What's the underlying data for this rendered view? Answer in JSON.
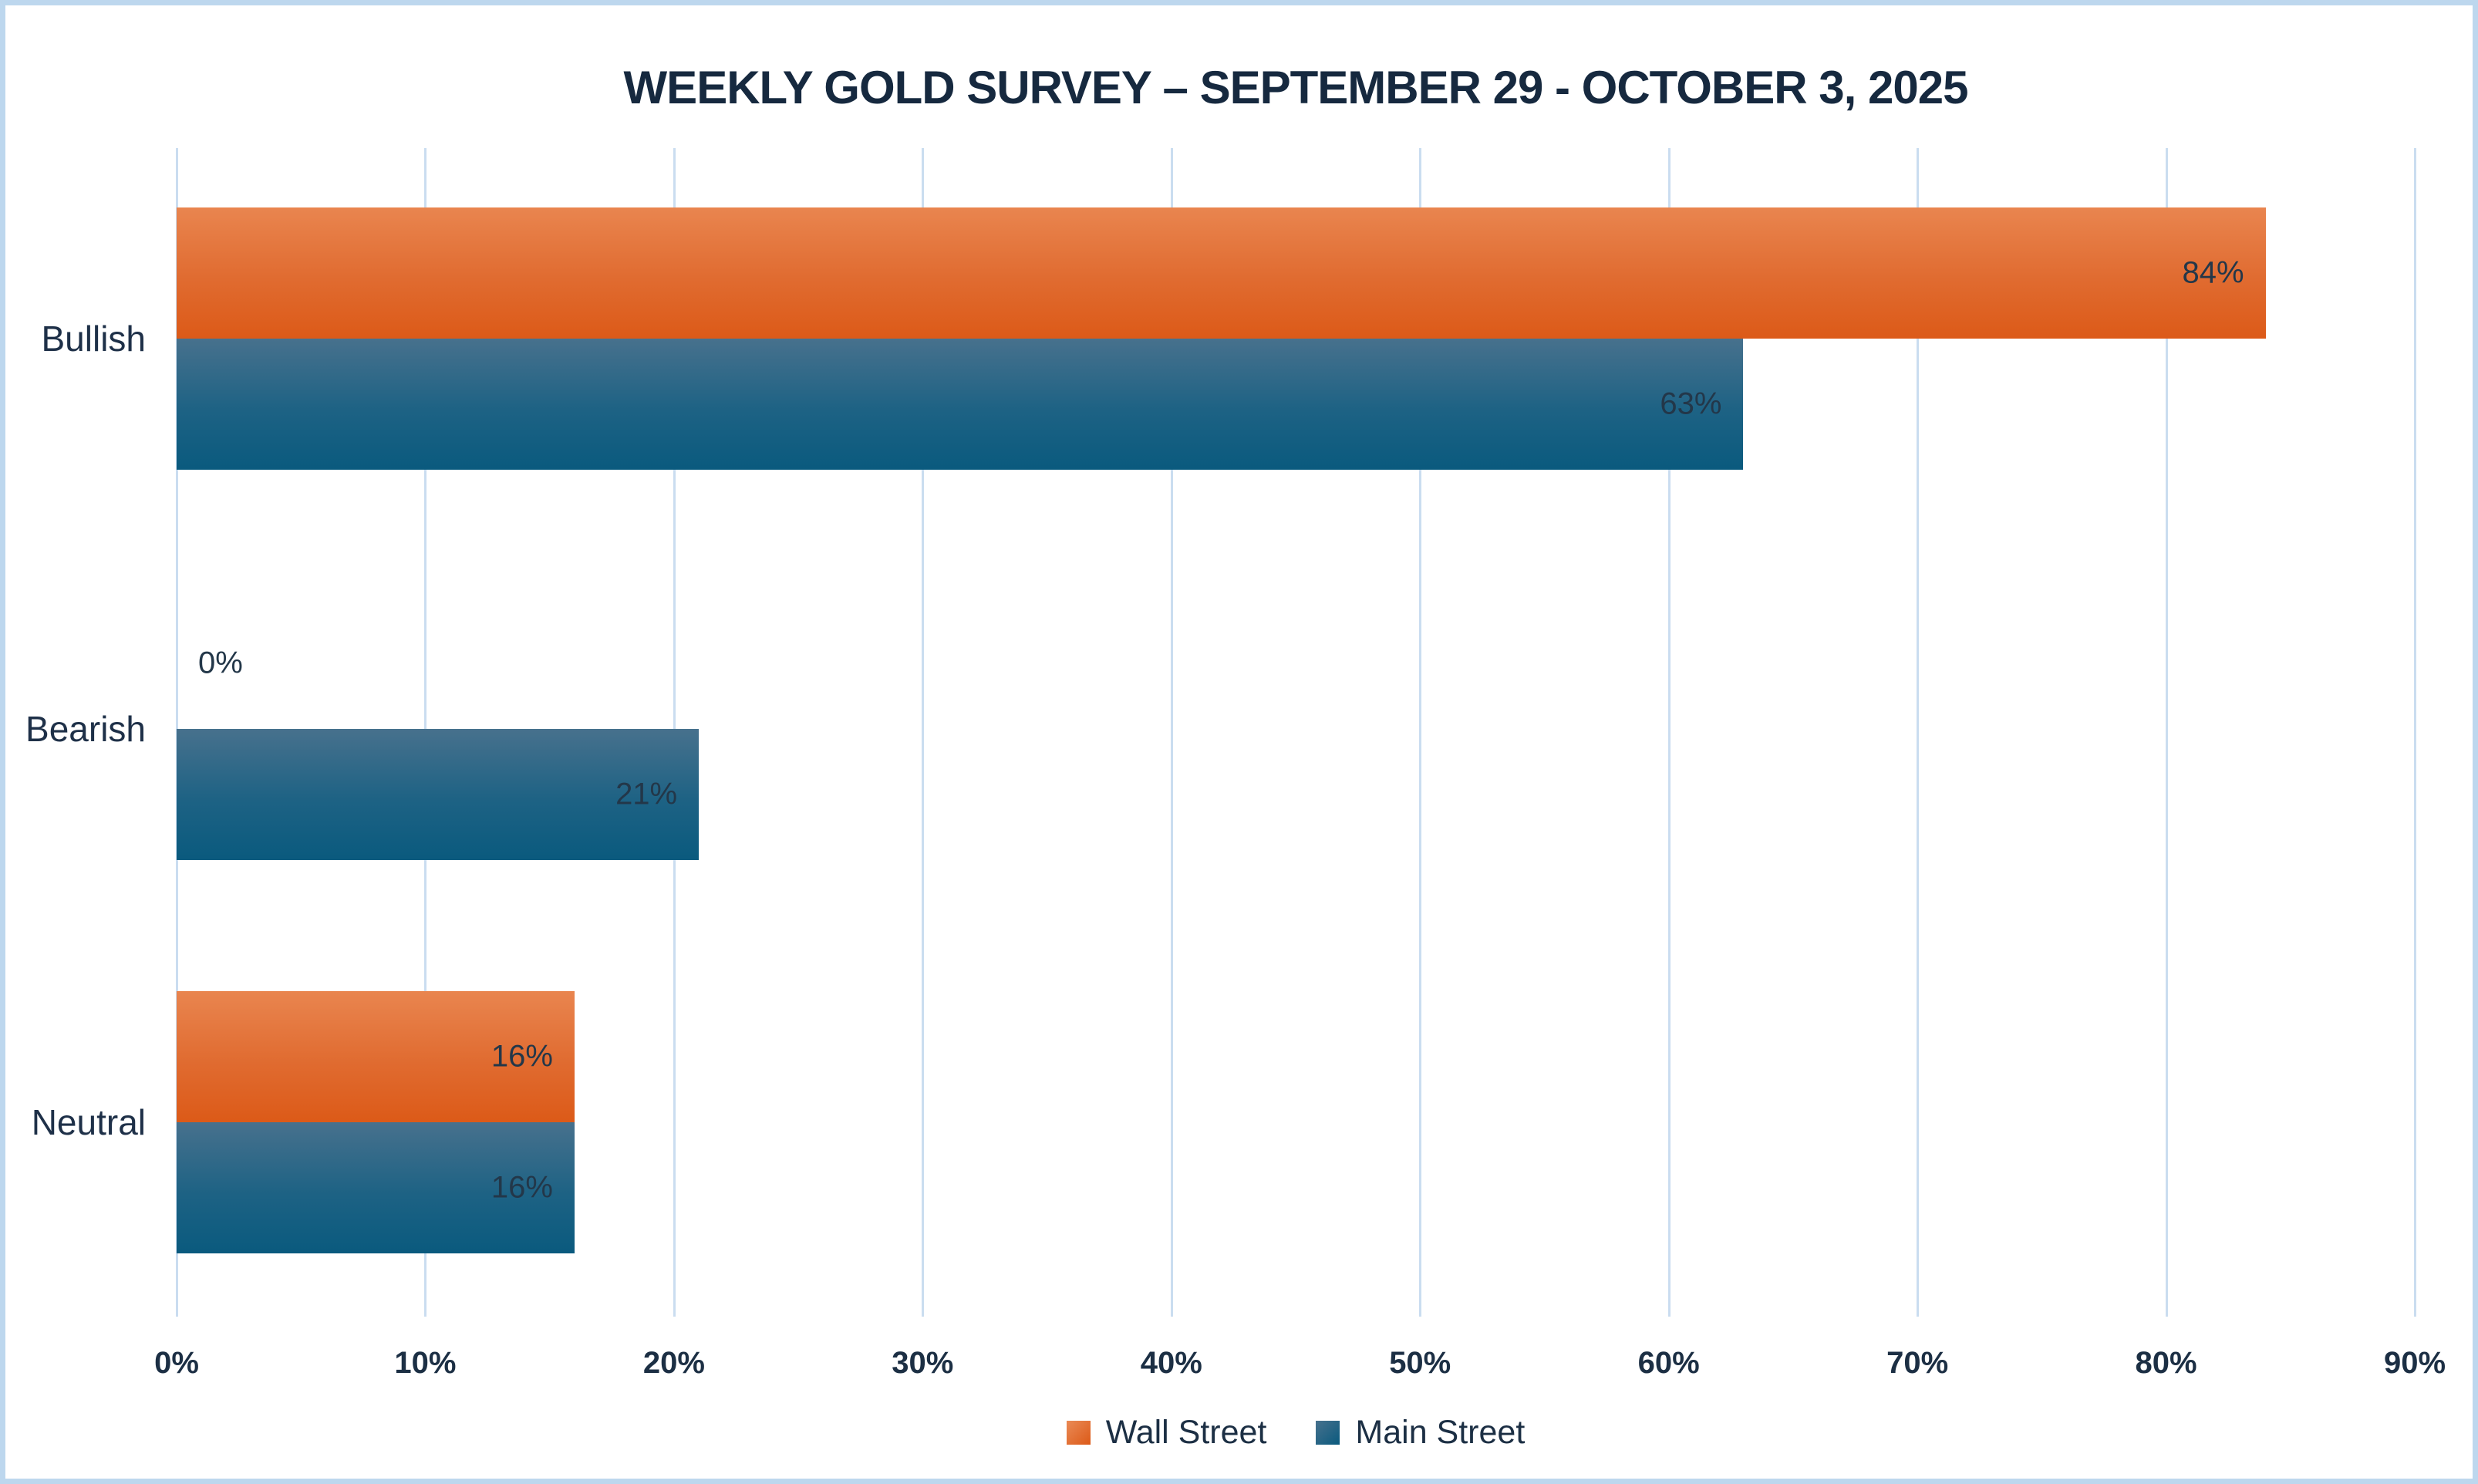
{
  "frame": {
    "border_color": "#BDD7EE",
    "background_color": "#FFFFFF"
  },
  "chart_data": {
    "type": "bar",
    "orientation": "horizontal",
    "title": "WEEKLY GOLD SURVEY – SEPTEMBER 29 - OCTOBER 3, 2025",
    "categories": [
      "Bullish",
      "Bearish",
      "Neutral"
    ],
    "series": [
      {
        "name": "Wall Street",
        "values": [
          84,
          0,
          16
        ],
        "data_labels": [
          "84%",
          "0%",
          "16%"
        ],
        "color_top": "#E9854F",
        "color_bottom": "#DC5A18"
      },
      {
        "name": "Main Street",
        "values": [
          63,
          21,
          16
        ],
        "data_labels": [
          "63%",
          "21%",
          "16%"
        ],
        "color_top": "#47718D",
        "color_bottom": "#0A5A7E"
      }
    ],
    "xlim": [
      0,
      90
    ],
    "x_ticks": [
      0,
      10,
      20,
      30,
      40,
      50,
      60,
      70,
      80,
      90
    ],
    "x_tick_labels": [
      "0%",
      "10%",
      "20%",
      "30%",
      "40%",
      "50%",
      "60%",
      "70%",
      "80%",
      "90%"
    ],
    "grid": "vertical",
    "grid_color": "#CADDF0",
    "legend_position": "bottom",
    "text_colors": {
      "title": "#16293F",
      "category_labels": "#1E3048",
      "data_labels": "#233749",
      "tick_labels": "#1C2F44",
      "legend_labels": "#1C2F44"
    }
  }
}
